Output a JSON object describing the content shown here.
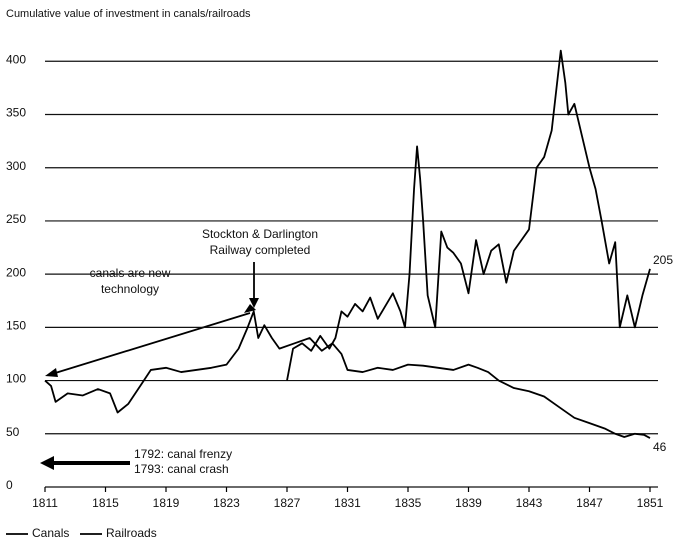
{
  "chart_data": {
    "type": "line",
    "title": "Cumulative value of investment in canals/railroads",
    "xlim": [
      1811,
      1851
    ],
    "xticks": [
      1811,
      1815,
      1819,
      1823,
      1827,
      1831,
      1835,
      1839,
      1843,
      1847,
      1851
    ],
    "ylim": [
      0,
      420
    ],
    "yticks": [
      0,
      50,
      100,
      150,
      200,
      250,
      300,
      350,
      400
    ],
    "grid": true,
    "legend": "bottom",
    "series": [
      {
        "name": "Canals",
        "color": "#000000",
        "x": [
          1811,
          1811.4,
          1811.7,
          1812.5,
          1813.5,
          1814.5,
          1815.3,
          1815.8,
          1816.5,
          1817.3,
          1818,
          1819,
          1820,
          1821,
          1822,
          1823,
          1823.8,
          1824.4,
          1824.8,
          1825.1,
          1825.5,
          1826,
          1826.5,
          1827.5,
          1828.5,
          1829.3,
          1830,
          1830.6,
          1831,
          1832,
          1833,
          1834,
          1835,
          1836,
          1837,
          1838,
          1839,
          1839.6,
          1840.3,
          1841,
          1842,
          1843,
          1844,
          1845,
          1846,
          1847,
          1848,
          1848.7,
          1849.3,
          1850,
          1850.6,
          1851
        ],
        "values": [
          100,
          95,
          80,
          88,
          86,
          92,
          88,
          70,
          78,
          95,
          110,
          112,
          108,
          110,
          112,
          115,
          130,
          150,
          165,
          140,
          152,
          140,
          130,
          135,
          140,
          128,
          135,
          125,
          110,
          108,
          112,
          110,
          115,
          114,
          112,
          110,
          115,
          112,
          108,
          100,
          93,
          90,
          85,
          75,
          65,
          60,
          55,
          50,
          47,
          50,
          49,
          46
        ]
      },
      {
        "name": "Railroads",
        "color": "#000000",
        "x": [
          1827,
          1827.4,
          1828,
          1828.6,
          1829.2,
          1829.8,
          1830.2,
          1830.6,
          1831,
          1831.5,
          1832,
          1832.5,
          1833,
          1833.5,
          1834,
          1834.5,
          1834.8,
          1835.1,
          1835.4,
          1835.6,
          1835.8,
          1836,
          1836.3,
          1836.8,
          1837.2,
          1837.6,
          1838,
          1838.5,
          1839,
          1839.5,
          1840,
          1840.5,
          1841,
          1841.5,
          1842,
          1842.5,
          1843,
          1843.5,
          1844,
          1844.5,
          1845.1,
          1845.4,
          1845.6,
          1846,
          1846.5,
          1847,
          1847.4,
          1847.8,
          1848.3,
          1848.7,
          1849,
          1849.5,
          1850,
          1850.5,
          1851
        ],
        "values": [
          100,
          130,
          135,
          128,
          142,
          130,
          140,
          165,
          160,
          172,
          165,
          178,
          158,
          170,
          182,
          165,
          150,
          200,
          280,
          320,
          290,
          250,
          180,
          150,
          240,
          225,
          220,
          210,
          182,
          232,
          200,
          222,
          228,
          192,
          222,
          232,
          242,
          300,
          310,
          335,
          410,
          380,
          350,
          360,
          330,
          300,
          280,
          250,
          210,
          230,
          150,
          180,
          150,
          180,
          205
        ]
      }
    ],
    "annotations": {
      "stockton": [
        "Stockton & Darlington",
        "Railway completed"
      ],
      "canals_new": [
        "canals are new",
        "technology"
      ],
      "frenzy": [
        "1792: canal frenzy",
        "1793: canal crash"
      ]
    }
  }
}
